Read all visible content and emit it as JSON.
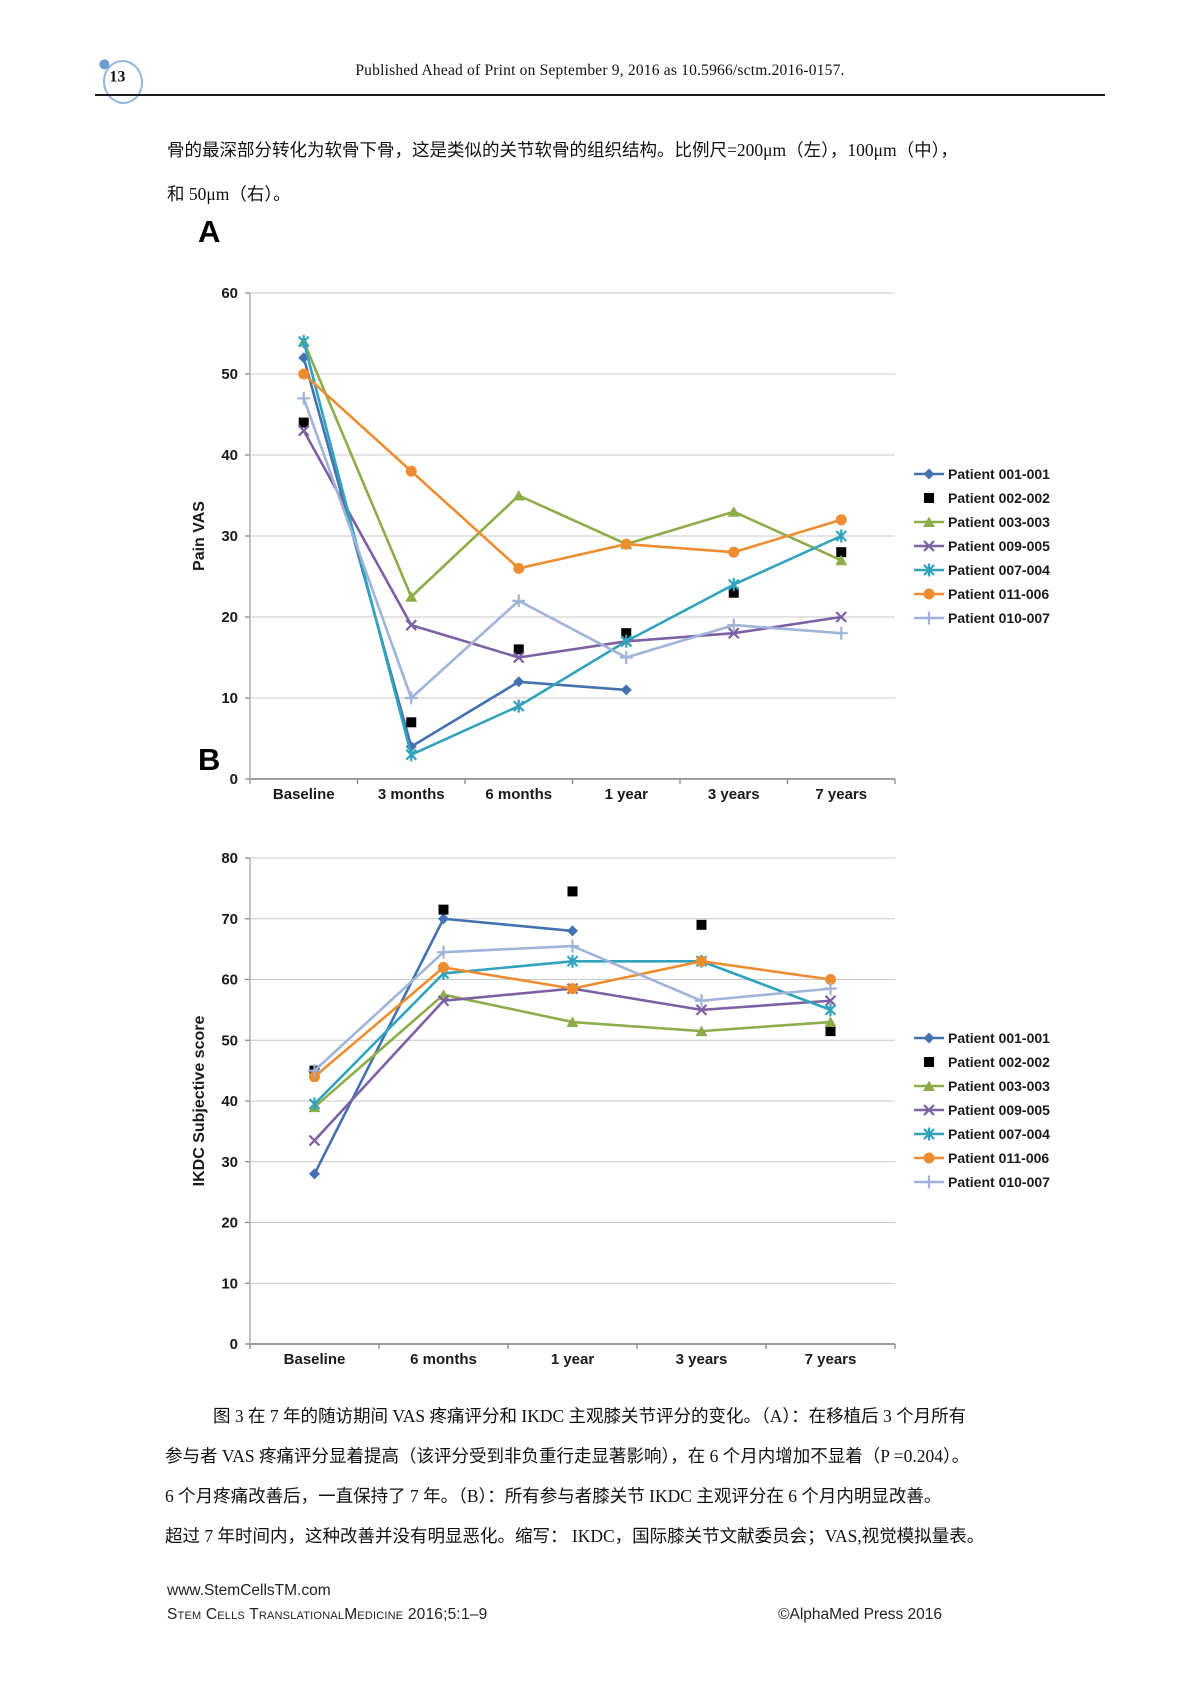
{
  "page": {
    "number": "13",
    "header": "Published Ahead of Print on September 9, 2016 as 10.5966/sctm.2016-0157.",
    "intro_lines": [
      "骨的最深部分转化为软骨下骨，这是类似的关节软骨的组织结构。比例尺=200μm（左），100μm（中），",
      "和 50μm（右）。"
    ]
  },
  "figure": {
    "panel_a_label": "A",
    "panel_b_label": "B",
    "caption_lines": [
      "图 3 在 7 年的随访期间 VAS 疼痛评分和 IKDC 主观膝关节评分的变化。（A）：在移植后 3 个月所有",
      "参与者 VAS 疼痛评分显着提高（该评分受到非负重行走显著影响），在 6 个月内增加不显着（P =0.204）。",
      "6 个月疼痛改善后，一直保持了 7 年。（B）：所有参与者膝关节 IKDC 主观评分在 6 个月内明显改善。",
      "超过 7 年时间内，这种改善并没有明显恶化。缩写： IKDC，国际膝关节文献委员会；VAS,视觉模拟量表。"
    ]
  },
  "footer": {
    "url": "www.StemCellsTM.com",
    "journal": "Stem Cells TranslationalMedicine 2016;5:1–9",
    "copyright": "©AlphaMed Press 2016"
  },
  "colors": {
    "gridline": "#c8c8c8",
    "axis": "#7f7f7f",
    "text": "#1a1a1a"
  },
  "chart_data": [
    {
      "type": "line",
      "panel": "A",
      "title": "",
      "xlabel": "",
      "ylabel": "Pain VAS",
      "ylim": [
        0,
        60
      ],
      "ystep": 10,
      "grid": true,
      "legend_position": "right",
      "categories": [
        "Baseline",
        "3 months",
        "6 months",
        "1 year",
        "3 years",
        "7 years"
      ],
      "series": [
        {
          "name": "Patient 001-001",
          "color": "#4472b0",
          "marker": "diamond",
          "values": [
            52,
            4,
            12,
            11,
            null,
            null
          ]
        },
        {
          "name": "Patient 002-002",
          "color": "#bе4b45",
          "marker": "square",
          "values": [
            44,
            7,
            16,
            18,
            23,
            28
          ]
        },
        {
          "name": "Patient 003-003",
          "color": "#8cad49",
          "marker": "triangle",
          "values": [
            54,
            22.5,
            35,
            29,
            33,
            27
          ]
        },
        {
          "name": "Patient 009-005",
          "color": "#7d60a3",
          "marker": "x",
          "values": [
            43,
            19,
            15,
            17,
            18,
            20
          ]
        },
        {
          "name": "Patient 007-004",
          "color": "#31a3bd",
          "marker": "asterisk",
          "values": [
            54,
            3,
            9,
            17,
            24,
            30
          ]
        },
        {
          "name": "Patient 011-006",
          "color": "#ee8d30",
          "marker": "circle",
          "values": [
            50,
            38,
            26,
            29,
            28,
            32
          ]
        },
        {
          "name": "Patient 010-007",
          "color": "#9fb4d8",
          "marker": "plus",
          "values": [
            47,
            10,
            22,
            15,
            19,
            18
          ]
        }
      ]
    },
    {
      "type": "line",
      "panel": "B",
      "title": "",
      "xlabel": "",
      "ylabel": "IKDC Subjective score",
      "ylim": [
        0,
        80
      ],
      "ystep": 10,
      "grid": true,
      "legend_position": "right",
      "categories": [
        "Baseline",
        "6 months",
        "1 year",
        "3 years",
        "7 years"
      ],
      "series": [
        {
          "name": "Patient 001-001",
          "color": "#4472b0",
          "marker": "diamond",
          "values": [
            28,
            70,
            68,
            null,
            null
          ]
        },
        {
          "name": "Patient 002-002",
          "color": "#bе4b45",
          "marker": "square",
          "values": [
            45,
            71.5,
            74.5,
            69,
            51.5
          ]
        },
        {
          "name": "Patient 003-003",
          "color": "#8cad49",
          "marker": "triangle",
          "values": [
            39,
            57.5,
            53,
            51.5,
            53
          ]
        },
        {
          "name": "Patient 009-005",
          "color": "#7d60a3",
          "marker": "x",
          "values": [
            33.5,
            56.5,
            58.5,
            55,
            56.5
          ]
        },
        {
          "name": "Patient 007-004",
          "color": "#31a3bd",
          "marker": "asterisk",
          "values": [
            39.5,
            61,
            63,
            63,
            55
          ]
        },
        {
          "name": "Patient 011-006",
          "color": "#ee8d30",
          "marker": "circle",
          "values": [
            44,
            62,
            58.5,
            63,
            60
          ]
        },
        {
          "name": "Patient 010-007",
          "color": "#9fb4d8",
          "marker": "plus",
          "values": [
            45,
            64.5,
            65.5,
            56.5,
            58.5
          ]
        }
      ]
    }
  ]
}
